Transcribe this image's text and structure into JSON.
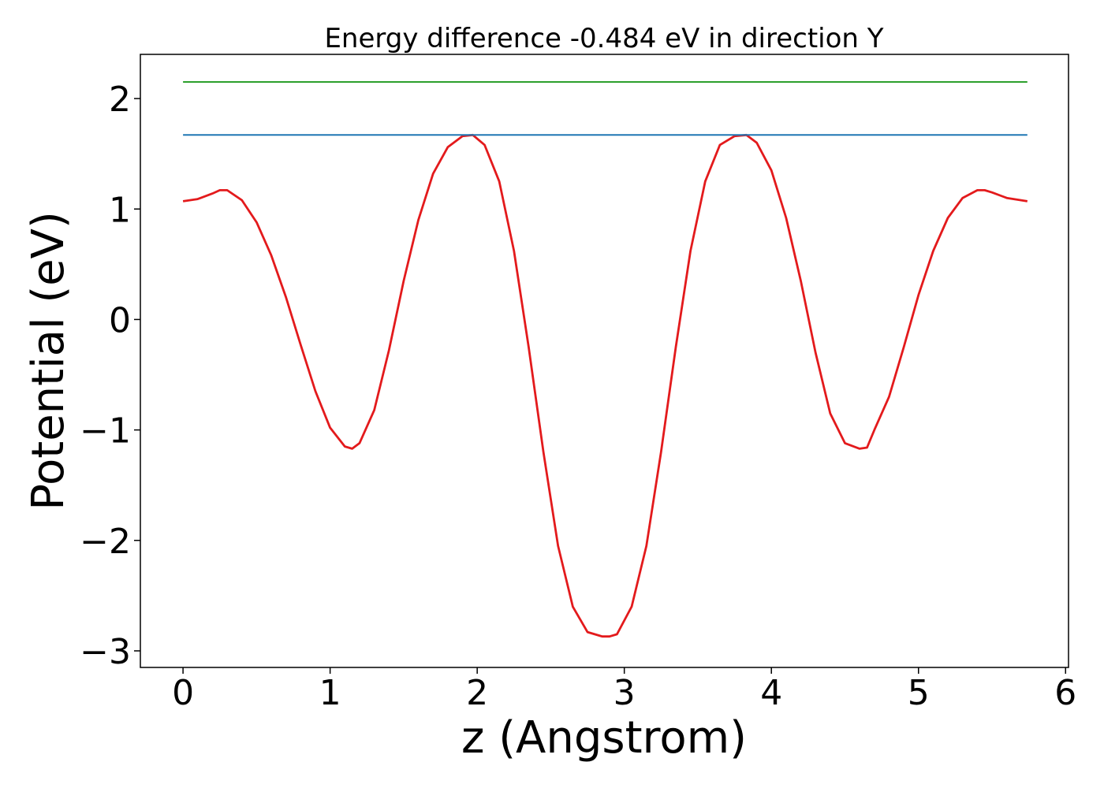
{
  "chart_data": {
    "type": "line",
    "title": "Energy difference -0.484 eV in direction Y",
    "xlabel": "z (Angstrom)",
    "ylabel": "Potential (eV)",
    "xlim": [
      -0.29,
      6.02
    ],
    "ylim": [
      -3.15,
      2.4
    ],
    "x_ticks": [
      0,
      1,
      2,
      3,
      4,
      5,
      6
    ],
    "x_tick_labels": [
      "0",
      "1",
      "2",
      "3",
      "4",
      "5",
      "6"
    ],
    "y_ticks": [
      2,
      1,
      0,
      -1,
      -2,
      -3
    ],
    "y_tick_labels": [
      "2",
      "1",
      "0",
      "−1",
      "−2",
      "−3"
    ],
    "grid": false,
    "legend": "none",
    "colors": {
      "potential": "#e31a1c",
      "level_low": "#1f77b4",
      "level_high": "#2ca02c"
    },
    "series": [
      {
        "key": "potential",
        "x": [
          0,
          0.1,
          0.2,
          0.25,
          0.3,
          0.4,
          0.5,
          0.6,
          0.7,
          0.8,
          0.9,
          1.0,
          1.1,
          1.15,
          1.2,
          1.3,
          1.4,
          1.5,
          1.6,
          1.7,
          1.8,
          1.9,
          1.97,
          2.05,
          2.15,
          2.25,
          2.35,
          2.45,
          2.55,
          2.65,
          2.75,
          2.85,
          2.9,
          2.95,
          3.05,
          3.15,
          3.25,
          3.35,
          3.45,
          3.55,
          3.65,
          3.75,
          3.83,
          3.9,
          4.0,
          4.1,
          4.2,
          4.3,
          4.4,
          4.5,
          4.6,
          4.65,
          4.7,
          4.8,
          4.9,
          5.0,
          5.1,
          5.2,
          5.3,
          5.4,
          5.45,
          5.5,
          5.6,
          5.74
        ],
        "y": [
          1.07,
          1.09,
          1.14,
          1.17,
          1.17,
          1.08,
          0.88,
          0.58,
          0.2,
          -0.23,
          -0.65,
          -0.98,
          -1.15,
          -1.17,
          -1.12,
          -0.82,
          -0.28,
          0.35,
          0.9,
          1.32,
          1.56,
          1.66,
          1.67,
          1.58,
          1.25,
          0.62,
          -0.25,
          -1.2,
          -2.05,
          -2.6,
          -2.83,
          -2.87,
          -2.87,
          -2.85,
          -2.6,
          -2.05,
          -1.2,
          -0.25,
          0.62,
          1.25,
          1.58,
          1.66,
          1.67,
          1.6,
          1.35,
          0.92,
          0.35,
          -0.3,
          -0.85,
          -1.12,
          -1.17,
          -1.16,
          -1.0,
          -0.7,
          -0.25,
          0.22,
          0.62,
          0.92,
          1.1,
          1.17,
          1.17,
          1.15,
          1.1,
          1.07
        ]
      },
      {
        "key": "level_low",
        "x": [
          0,
          5.74
        ],
        "y": [
          1.67,
          1.67
        ]
      },
      {
        "key": "level_high",
        "x": [
          0,
          5.74
        ],
        "y": [
          2.15,
          2.15
        ]
      }
    ]
  }
}
